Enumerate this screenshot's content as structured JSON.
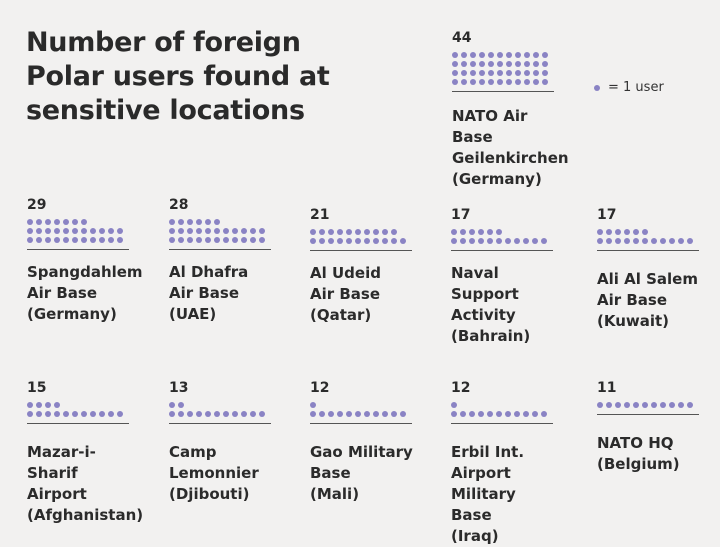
{
  "title": "Number of foreign\nPolar users found at\nsensitive locations",
  "legend": {
    "text": "= 1 user"
  },
  "colors": {
    "dot": "#8a83c4",
    "text": "#2b2b2b",
    "background": "#f2f1f0"
  },
  "chart_data": {
    "type": "dot-array",
    "title": "Number of foreign Polar users found at sensitive locations",
    "unit": "users",
    "categories": [
      "NATO Air Base Geilenkirchen (Germany)",
      "Spangdahlem Air Base (Germany)",
      "Al Dhafra Air Base (UAE)",
      "Al Udeid Air Base (Qatar)",
      "Naval Support Activity (Bahrain)",
      "Ali Al Salem Air Base (Kuwait)",
      "Mazar-i-Sharif Airport (Afghanistan)",
      "Camp Lemonnier (Djibouti)",
      "Gao Military Base (Mali)",
      "Erbil Int. Airport Military Base (Iraq)",
      "NATO HQ (Belgium)"
    ],
    "values": [
      44,
      29,
      28,
      21,
      17,
      17,
      15,
      13,
      12,
      12,
      11
    ],
    "items": [
      {
        "count": 44,
        "label": "NATO Air Base\nGeilenkirchen\n(Germany)"
      },
      {
        "count": 29,
        "label": "Spangdahlem\nAir Base\n(Germany)"
      },
      {
        "count": 28,
        "label": "Al Dhafra\nAir Base\n(UAE)"
      },
      {
        "count": 21,
        "label": "Al Udeid\nAir Base\n(Qatar)"
      },
      {
        "count": 17,
        "label": "Naval Support\nActivity\n(Bahrain)"
      },
      {
        "count": 17,
        "label": "Ali Al Salem\nAir Base\n(Kuwait)"
      },
      {
        "count": 15,
        "label": "Mazar-i-Sharif\nAirport\n(Afghanistan)"
      },
      {
        "count": 13,
        "label": "Camp\nLemonnier\n(Djibouti)"
      },
      {
        "count": 12,
        "label": "Gao Military\nBase\n(Mali)"
      },
      {
        "count": 12,
        "label": "Erbil Int. Airport\nMilitary Base\n(Iraq)"
      },
      {
        "count": 11,
        "label": "NATO HQ\n(Belgium)"
      }
    ]
  }
}
